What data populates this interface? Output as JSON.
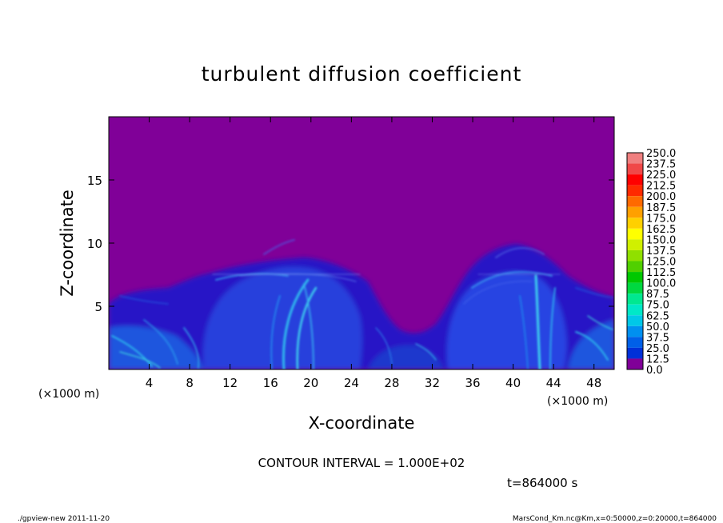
{
  "chart_data": {
    "type": "heatmap",
    "title": "turbulent diffusion coefficient",
    "xlabel": "X-coordinate",
    "ylabel": "Z-coordinate",
    "x_unit_left": "(×1000 m)",
    "x_unit_right": "(×1000 m)",
    "xlim": [
      0,
      50
    ],
    "ylim": [
      0,
      20
    ],
    "x_ticks": [
      "4",
      "8",
      "12",
      "16",
      "20",
      "24",
      "28",
      "32",
      "36",
      "40",
      "44",
      "48"
    ],
    "x_tick_values": [
      4,
      8,
      12,
      16,
      20,
      24,
      28,
      32,
      36,
      40,
      44,
      48
    ],
    "y_ticks": [
      "5",
      "10",
      "15"
    ],
    "y_tick_values": [
      5,
      10,
      15
    ],
    "colorbar_levels": [
      "250.0",
      "237.5",
      "225.0",
      "212.5",
      "200.0",
      "187.5",
      "175.0",
      "162.5",
      "150.0",
      "137.5",
      "125.0",
      "112.5",
      "100.0",
      "87.5",
      "75.0",
      "62.5",
      "50.0",
      "37.5",
      "25.0",
      "12.5",
      "0.0"
    ],
    "colorbar_colors": [
      "#f08080",
      "#f04848",
      "#ff0000",
      "#ff2a00",
      "#ff6a00",
      "#ffa000",
      "#ffd000",
      "#ffff00",
      "#d0f000",
      "#90e000",
      "#50d000",
      "#00c800",
      "#00d840",
      "#00e890",
      "#00e8c8",
      "#00c8e8",
      "#0090f0",
      "#0060e8",
      "#0030d8",
      "#1010c0",
      "#800098"
    ],
    "background_color": "#800098",
    "contour_interval": "CONTOUR INTERVAL = 1.000E+02",
    "time_label": "t=864000 s"
  },
  "footer": {
    "left": "./gpview-new   2011-11-20",
    "right": "MarsCond_Km.nc@Km,x=0:50000,z=0:20000,t=864000"
  }
}
